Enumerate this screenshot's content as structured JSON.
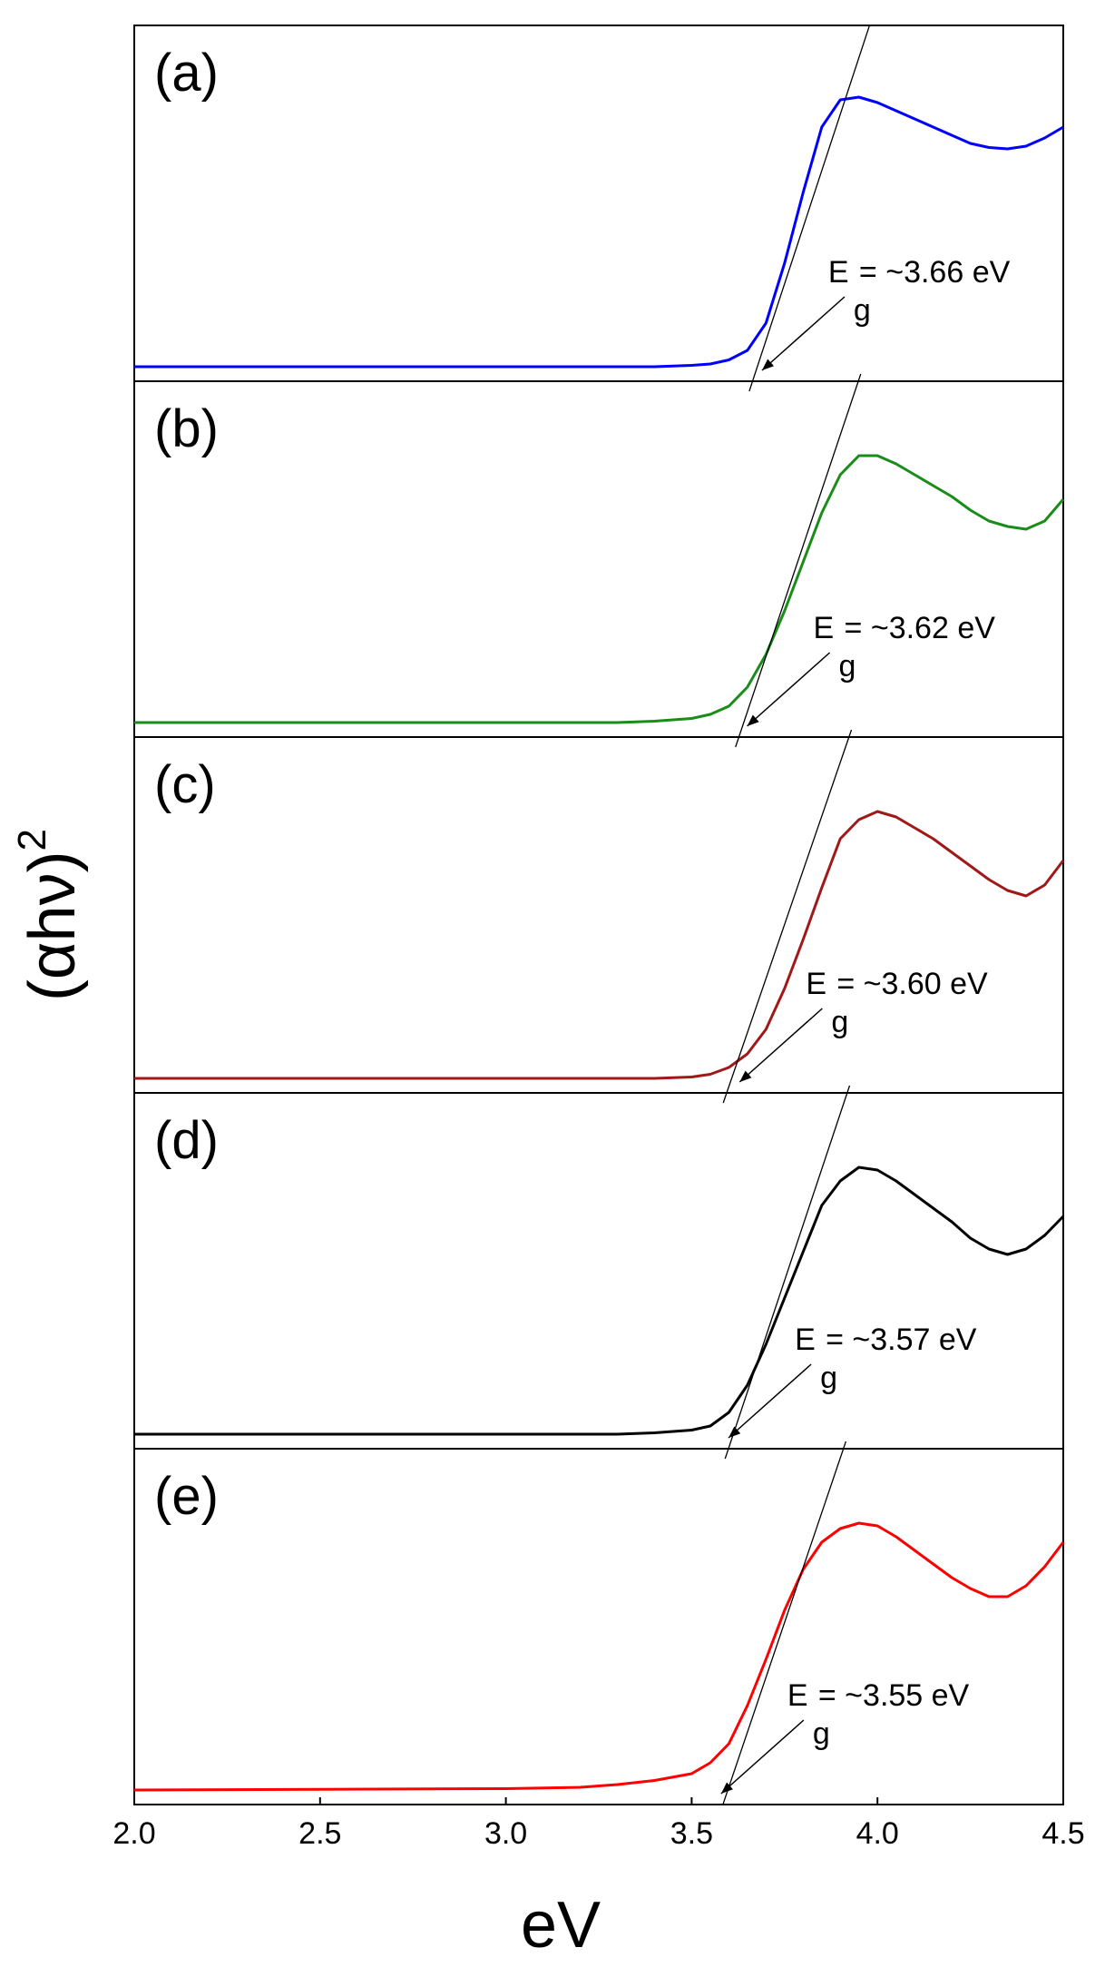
{
  "chart_data": {
    "type": "line",
    "xlabel": "eV",
    "ylabel": {
      "base": "(αhν)",
      "exponent": "2"
    },
    "xlim": [
      2.0,
      4.5
    ],
    "ylim": [
      0,
      1
    ],
    "x_ticks": [
      "2.0",
      "2.5",
      "3.0",
      "3.5",
      "4.0",
      "4.5"
    ],
    "x_tick_values": [
      2.0,
      2.5,
      3.0,
      3.5,
      4.0,
      4.5
    ],
    "panels": [
      {
        "label": "(a)",
        "color": "#0000ff",
        "gap": {
          "prefix": "E",
          "subscript": "g",
          "value": "= ~3.66 eV",
          "x": 3.66
        },
        "tangent": [
          [
            3.655,
            -0.07
          ],
          [
            3.985,
            1.3
          ]
        ],
        "x": [
          2.0,
          3.4,
          3.5,
          3.55,
          3.6,
          3.65,
          3.7,
          3.75,
          3.8,
          3.85,
          3.9,
          3.95,
          4.0,
          4.05,
          4.1,
          4.15,
          4.2,
          4.25,
          4.3,
          4.35,
          4.4,
          4.45,
          4.5
        ],
        "y": [
          0.02,
          0.02,
          0.025,
          0.03,
          0.045,
          0.08,
          0.18,
          0.4,
          0.66,
          0.9,
          1.0,
          1.01,
          0.99,
          0.96,
          0.93,
          0.9,
          0.87,
          0.84,
          0.825,
          0.82,
          0.83,
          0.86,
          0.9
        ]
      },
      {
        "label": "(b)",
        "color": "#1a8c1a",
        "gap": {
          "prefix": "E",
          "subscript": "g",
          "value": "= ~3.62 eV",
          "x": 3.62
        },
        "tangent": [
          [
            3.618,
            -0.07
          ],
          [
            3.955,
            1.3
          ]
        ],
        "x": [
          2.0,
          3.3,
          3.4,
          3.5,
          3.55,
          3.6,
          3.65,
          3.7,
          3.75,
          3.8,
          3.85,
          3.9,
          3.95,
          4.0,
          4.05,
          4.1,
          4.15,
          4.2,
          4.25,
          4.3,
          4.35,
          4.4,
          4.45,
          4.5
        ],
        "y": [
          0.02,
          0.02,
          0.025,
          0.035,
          0.05,
          0.08,
          0.15,
          0.27,
          0.43,
          0.61,
          0.79,
          0.93,
          1.0,
          1.0,
          0.97,
          0.93,
          0.89,
          0.85,
          0.8,
          0.76,
          0.74,
          0.73,
          0.76,
          0.84
        ]
      },
      {
        "label": "(c)",
        "color": "#a01818",
        "gap": {
          "prefix": "E",
          "subscript": "g",
          "value": "= ~3.60 eV",
          "x": 3.6
        },
        "tangent": [
          [
            3.585,
            -0.07
          ],
          [
            3.93,
            1.3
          ]
        ],
        "x": [
          2.0,
          3.4,
          3.5,
          3.55,
          3.6,
          3.65,
          3.7,
          3.75,
          3.8,
          3.85,
          3.9,
          3.95,
          4.0,
          4.05,
          4.1,
          4.15,
          4.2,
          4.25,
          4.3,
          4.35,
          4.4,
          4.45,
          4.5
        ],
        "y": [
          0.02,
          0.02,
          0.025,
          0.035,
          0.06,
          0.11,
          0.2,
          0.35,
          0.53,
          0.72,
          0.9,
          0.97,
          1.0,
          0.98,
          0.94,
          0.9,
          0.85,
          0.8,
          0.75,
          0.71,
          0.69,
          0.73,
          0.82
        ]
      },
      {
        "label": "(d)",
        "color": "#000000",
        "gap": {
          "prefix": "E",
          "subscript": "g",
          "value": "= ~3.57 eV",
          "x": 3.57
        },
        "tangent": [
          [
            3.59,
            -0.07
          ],
          [
            3.925,
            1.3
          ]
        ],
        "x": [
          2.0,
          3.3,
          3.4,
          3.5,
          3.55,
          3.6,
          3.65,
          3.7,
          3.75,
          3.8,
          3.85,
          3.9,
          3.95,
          4.0,
          4.05,
          4.1,
          4.15,
          4.2,
          4.25,
          4.3,
          4.35,
          4.4,
          4.45,
          4.5
        ],
        "y": [
          0.02,
          0.02,
          0.025,
          0.035,
          0.05,
          0.1,
          0.2,
          0.35,
          0.52,
          0.69,
          0.86,
          0.95,
          1.0,
          0.99,
          0.95,
          0.9,
          0.85,
          0.8,
          0.74,
          0.7,
          0.68,
          0.7,
          0.75,
          0.82
        ]
      },
      {
        "label": "(e)",
        "color": "#ff0000",
        "gap": {
          "prefix": "E",
          "subscript": "g",
          "value": "= ~3.55 eV",
          "x": 3.55
        },
        "tangent": [
          [
            3.575,
            -0.07
          ],
          [
            3.915,
            1.3
          ]
        ],
        "x": [
          2.0,
          3.0,
          3.2,
          3.3,
          3.4,
          3.5,
          3.55,
          3.6,
          3.65,
          3.7,
          3.75,
          3.8,
          3.85,
          3.9,
          3.95,
          4.0,
          4.05,
          4.1,
          4.15,
          4.2,
          4.25,
          4.3,
          4.35,
          4.4,
          4.45,
          4.5
        ],
        "y": [
          0.02,
          0.025,
          0.03,
          0.04,
          0.055,
          0.08,
          0.12,
          0.19,
          0.33,
          0.5,
          0.68,
          0.83,
          0.93,
          0.98,
          1.0,
          0.99,
          0.95,
          0.9,
          0.85,
          0.8,
          0.76,
          0.73,
          0.73,
          0.77,
          0.84,
          0.93
        ]
      }
    ]
  }
}
